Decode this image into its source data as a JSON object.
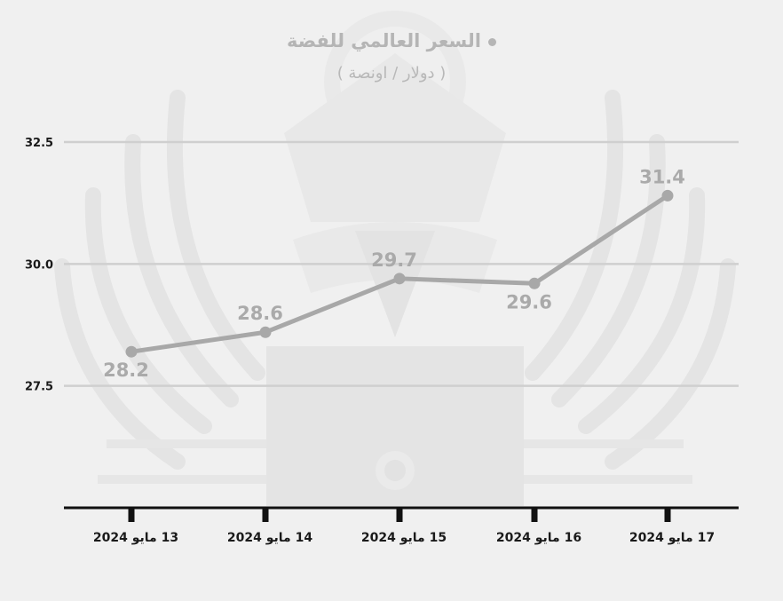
{
  "title": "السعر العالمي للفضة",
  "subtitle": "( دولار / اونصة )",
  "colors": {
    "background": "#f0f0f0",
    "line": "#a8a8a8",
    "grid": "#cfcfcf",
    "axis": "#111111",
    "label": "#aaaaaa",
    "watermark": "#e6e6e6"
  },
  "chart_data": {
    "type": "line",
    "categories": [
      "13 مايو 2024",
      "14 مايو 2024",
      "15 مايو 2024",
      "16 مايو 2024",
      "17 مايو 2024"
    ],
    "series": [
      {
        "values": [
          28.2,
          28.6,
          29.7,
          29.6,
          31.4
        ]
      }
    ],
    "data_labels": [
      "28.2",
      "28.6",
      "29.7",
      "29.6",
      "31.4"
    ],
    "label_positions": [
      "below",
      "above",
      "above",
      "below",
      "above"
    ],
    "yticks": [
      "27.5",
      "30.0",
      "32.5"
    ],
    "ytick_values": [
      27.5,
      30.0,
      32.5
    ],
    "ylim": [
      25.0,
      32.5
    ],
    "grid": true,
    "title": "السعر العالمي للفضة",
    "ylabel": "( دولار / اونصة )",
    "xlabel": ""
  }
}
